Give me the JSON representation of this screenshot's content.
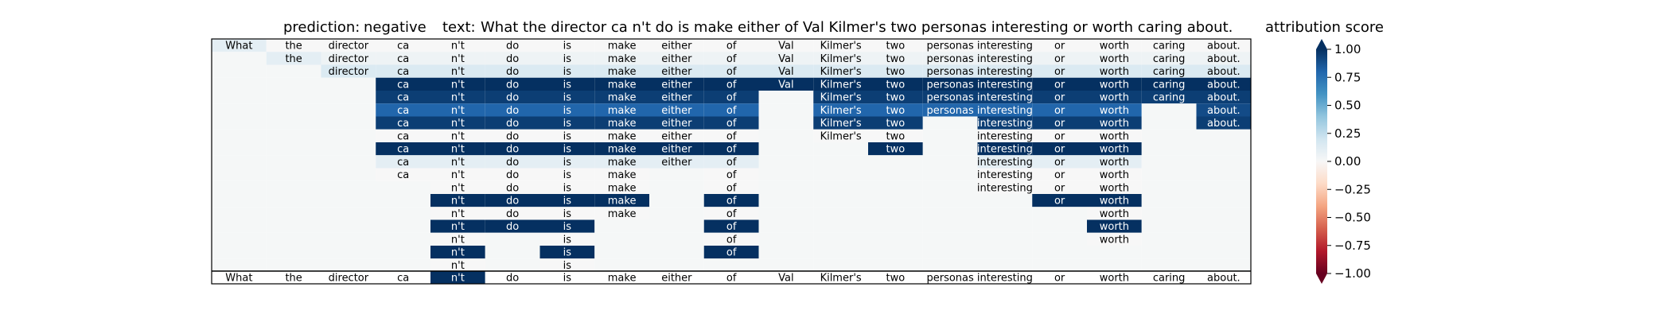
{
  "chart_data": {
    "type": "heatmap",
    "prediction_label": "prediction:",
    "prediction_value": "negative",
    "text_label": "text:",
    "text_value": "What the director ca n't do is make either of Val Kilmer's two personas interesting or worth caring about.",
    "colorbar_title": "attribution score",
    "colorbar_range": [
      -1.0,
      1.0
    ],
    "colorbar_ticks": [
      "1.00",
      "0.75",
      "0.50",
      "0.25",
      "0.00",
      "−0.25",
      "−0.50",
      "−0.75",
      "−1.00"
    ],
    "colorbar_tick_values": [
      1.0,
      0.75,
      0.5,
      0.25,
      0.0,
      -0.25,
      -0.5,
      -0.75,
      -1.0
    ],
    "colorscale": "RdBu",
    "tokens": [
      "What",
      "the",
      "director",
      "ca",
      "n't",
      "do",
      "is",
      "make",
      "either",
      "of",
      "Val",
      "Kilmer's",
      "two",
      "personas",
      "interesting",
      "or",
      "worth",
      "caring",
      "about."
    ],
    "highlight_last_row_token_index": 4,
    "rows": [
      [
        0.1,
        0.0,
        0.0,
        0.0,
        0.0,
        0.0,
        0.0,
        0.0,
        0.0,
        0.0,
        0.0,
        0.0,
        0.0,
        0.0,
        0.0,
        0.0,
        0.0,
        0.0,
        0.0
      ],
      [
        null,
        0.1,
        0.05,
        0.05,
        0.05,
        0.05,
        0.05,
        0.05,
        0.05,
        0.05,
        0.05,
        0.05,
        0.05,
        0.05,
        0.05,
        0.05,
        0.05,
        0.05,
        0.05
      ],
      [
        null,
        null,
        0.15,
        0.15,
        0.15,
        0.15,
        0.15,
        0.15,
        0.15,
        0.15,
        0.15,
        0.15,
        0.15,
        0.15,
        0.15,
        0.15,
        0.15,
        0.15,
        0.15
      ],
      [
        null,
        null,
        null,
        1.0,
        1.0,
        1.0,
        1.0,
        1.0,
        1.0,
        1.0,
        1.0,
        1.0,
        1.0,
        1.0,
        1.0,
        1.0,
        1.0,
        1.0,
        1.0
      ],
      [
        null,
        null,
        null,
        0.95,
        0.95,
        0.95,
        0.95,
        0.95,
        0.95,
        0.95,
        null,
        0.95,
        0.95,
        0.95,
        0.95,
        0.95,
        0.95,
        0.95,
        0.95
      ],
      [
        null,
        null,
        null,
        0.8,
        0.8,
        0.8,
        0.8,
        0.8,
        0.8,
        0.8,
        null,
        0.8,
        0.8,
        0.8,
        0.8,
        0.8,
        0.8,
        null,
        0.9
      ],
      [
        null,
        null,
        null,
        0.95,
        0.95,
        0.95,
        0.95,
        0.95,
        0.95,
        0.95,
        null,
        0.95,
        0.95,
        null,
        0.95,
        0.95,
        0.95,
        null,
        0.95
      ],
      [
        null,
        null,
        null,
        0.0,
        0.0,
        0.0,
        0.0,
        0.0,
        0.0,
        0.0,
        null,
        0.0,
        0.0,
        null,
        0.0,
        0.0,
        0.0,
        null,
        null
      ],
      [
        null,
        null,
        null,
        1.0,
        1.0,
        1.0,
        1.0,
        1.0,
        1.0,
        1.0,
        null,
        null,
        1.0,
        null,
        1.0,
        1.0,
        1.0,
        null,
        null
      ],
      [
        null,
        null,
        null,
        0.1,
        0.1,
        0.1,
        0.1,
        0.1,
        0.1,
        0.1,
        null,
        null,
        null,
        null,
        0.1,
        0.1,
        0.1,
        null,
        null
      ],
      [
        null,
        null,
        null,
        0.0,
        0.0,
        0.0,
        0.0,
        0.0,
        null,
        0.0,
        null,
        null,
        null,
        null,
        0.0,
        0.0,
        0.0,
        null,
        null
      ],
      [
        null,
        null,
        null,
        null,
        0.0,
        0.0,
        0.0,
        0.0,
        null,
        0.0,
        null,
        null,
        null,
        null,
        0.0,
        0.0,
        0.0,
        null,
        null
      ],
      [
        null,
        null,
        null,
        null,
        1.0,
        1.0,
        1.0,
        1.0,
        null,
        1.0,
        null,
        null,
        null,
        null,
        null,
        1.0,
        1.0,
        null,
        null
      ],
      [
        null,
        null,
        null,
        null,
        0.0,
        0.0,
        0.0,
        0.0,
        null,
        0.0,
        null,
        null,
        null,
        null,
        null,
        null,
        0.0,
        null,
        null
      ],
      [
        null,
        null,
        null,
        null,
        1.0,
        1.0,
        1.0,
        null,
        null,
        1.0,
        null,
        null,
        null,
        null,
        null,
        null,
        1.0,
        null,
        null
      ],
      [
        null,
        null,
        null,
        null,
        0.0,
        null,
        0.0,
        null,
        null,
        0.0,
        null,
        null,
        null,
        null,
        null,
        null,
        0.0,
        null,
        null
      ],
      [
        null,
        null,
        null,
        null,
        1.0,
        null,
        1.0,
        null,
        null,
        1.0,
        null,
        null,
        null,
        null,
        null,
        null,
        null,
        null,
        null
      ],
      [
        null,
        null,
        null,
        null,
        0.0,
        null,
        0.0,
        null,
        null,
        null,
        null,
        null,
        null,
        null,
        null,
        null,
        null,
        null,
        null
      ]
    ]
  }
}
